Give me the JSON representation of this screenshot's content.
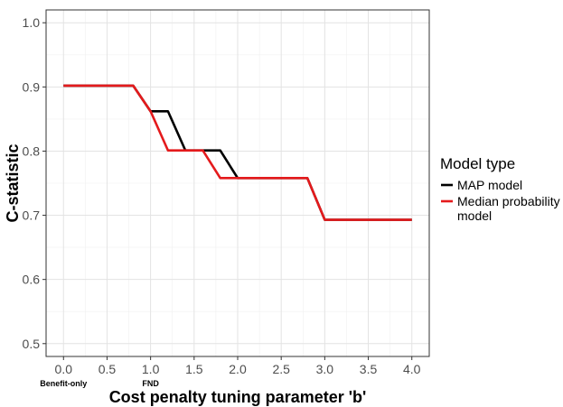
{
  "chart_data": {
    "type": "line",
    "xlabel": "Cost penalty tuning parameter 'b'",
    "ylabel": "C-statistic",
    "xlim": [
      -0.2,
      4.2
    ],
    "ylim": [
      0.48,
      1.02
    ],
    "x_ticks": [
      0.0,
      0.5,
      1.0,
      1.5,
      2.0,
      2.5,
      3.0,
      3.5,
      4.0
    ],
    "x_tick_labels": [
      "0.0",
      "0.5",
      "1.0",
      "1.5",
      "2.0",
      "2.5",
      "3.0",
      "3.5",
      "4.0"
    ],
    "y_ticks": [
      0.5,
      0.6,
      0.7,
      0.8,
      0.9,
      1.0
    ],
    "y_tick_labels": [
      "0.5",
      "0.6",
      "0.7",
      "0.8",
      "0.9",
      "1.0"
    ],
    "x_sub_labels": [
      {
        "x": 0.0,
        "text": "Benefit-only"
      },
      {
        "x": 1.0,
        "text": "FND"
      }
    ],
    "grid": true,
    "legend": {
      "title": "Model type",
      "position": "right",
      "entries": [
        {
          "label_lines": [
            "MAP model"
          ],
          "color": "#000000"
        },
        {
          "label_lines": [
            "Median probability",
            " model"
          ],
          "color": "#e41a1c"
        }
      ]
    },
    "series": [
      {
        "color": "#000000",
        "x": [
          0.0,
          0.8,
          1.0,
          1.2,
          1.4,
          1.6,
          1.8,
          2.0,
          2.2,
          2.4,
          2.6,
          2.8,
          3.0,
          3.5,
          4.0
        ],
        "y": [
          0.902,
          0.902,
          0.862,
          0.862,
          0.801,
          0.801,
          0.801,
          0.758,
          0.758,
          0.758,
          0.758,
          0.758,
          0.693,
          0.693,
          0.693
        ]
      },
      {
        "color": "#e41a1c",
        "x": [
          0.0,
          0.8,
          1.0,
          1.2,
          1.4,
          1.6,
          1.8,
          2.0,
          2.2,
          2.4,
          2.6,
          2.8,
          3.0,
          3.5,
          4.0
        ],
        "y": [
          0.902,
          0.902,
          0.862,
          0.801,
          0.801,
          0.801,
          0.758,
          0.758,
          0.758,
          0.758,
          0.758,
          0.758,
          0.693,
          0.693,
          0.693
        ]
      }
    ]
  }
}
